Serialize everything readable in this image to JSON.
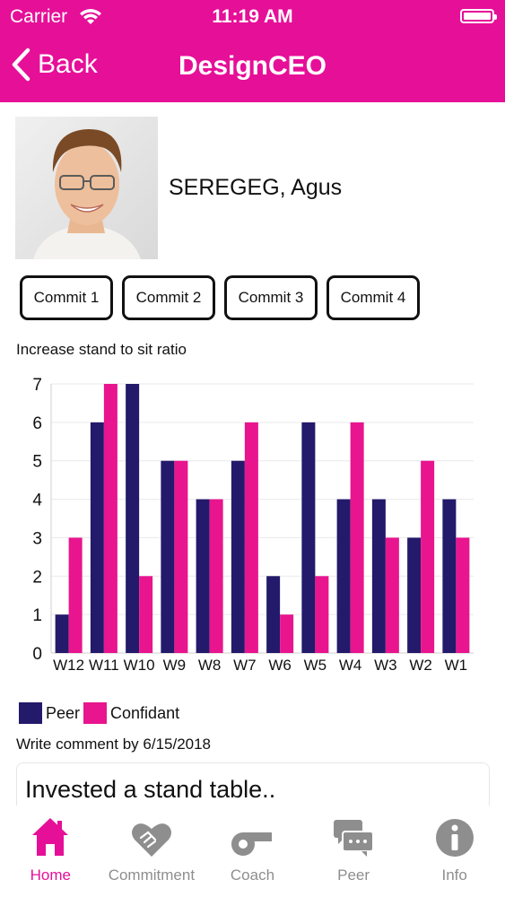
{
  "status_bar": {
    "carrier": "Carrier",
    "time": "11:19 AM"
  },
  "nav": {
    "back_label": "Back",
    "title": "DesignCEO"
  },
  "profile": {
    "name": "SEREGEG, Agus"
  },
  "commits": [
    "Commit 1",
    "Commit 2",
    "Commit 3",
    "Commit 4"
  ],
  "chart_title": "Increase stand to sit ratio",
  "legend": {
    "peer": "Peer",
    "confidant": "Confidant"
  },
  "colors": {
    "accent": "#e60f98",
    "peer": "#231a6b",
    "confidant": "#e8158f"
  },
  "chart_data": {
    "type": "bar",
    "title": "Increase stand to sit ratio",
    "categories": [
      "W12",
      "W11",
      "W10",
      "W9",
      "W8",
      "W7",
      "W6",
      "W5",
      "W4",
      "W3",
      "W2",
      "W1"
    ],
    "series": [
      {
        "name": "Peer",
        "values": [
          1,
          6,
          7,
          5,
          4,
          5,
          2,
          6,
          4,
          4,
          3,
          4
        ]
      },
      {
        "name": "Confidant",
        "values": [
          3,
          7,
          2,
          5,
          4,
          6,
          1,
          2,
          6,
          3,
          5,
          3
        ]
      }
    ],
    "ylim": [
      0,
      7
    ],
    "yticks": [
      "0",
      "1",
      "2",
      "3",
      "4",
      "5",
      "6",
      "7"
    ],
    "grid": true,
    "legend_position": "bottom-left"
  },
  "comment": {
    "label": "Write comment by 6/15/2018",
    "value": "Invested a stand table.."
  },
  "tabs": [
    {
      "label": "Home",
      "icon": "home-icon",
      "active": true
    },
    {
      "label": "Commitment",
      "icon": "handshake-heart-icon",
      "active": false
    },
    {
      "label": "Coach",
      "icon": "whistle-icon",
      "active": false
    },
    {
      "label": "Peer",
      "icon": "chat-bubbles-icon",
      "active": false
    },
    {
      "label": "Info",
      "icon": "info-icon",
      "active": false
    }
  ]
}
